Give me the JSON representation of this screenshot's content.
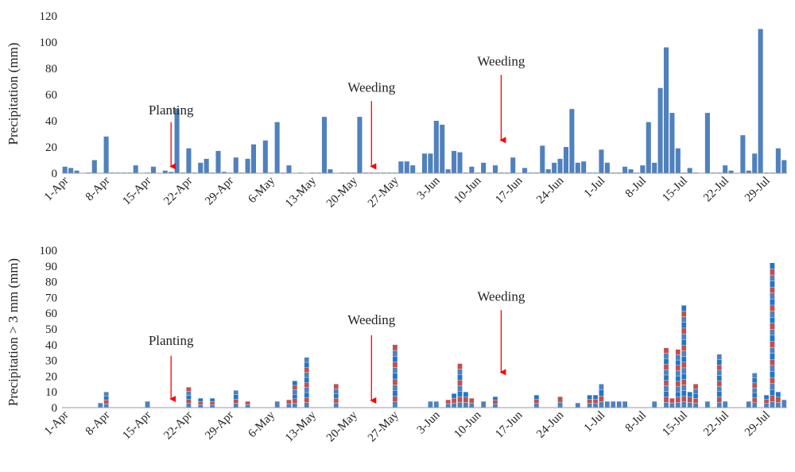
{
  "colors": {
    "blue": "#4F81BD",
    "red": "#C0504D",
    "darkblue": "#1F77C8",
    "axis": "#9a9a9a",
    "arrow": "#FF0000"
  },
  "chart_data": [
    {
      "type": "bar",
      "ylabel": "Precipitation (mm)",
      "ylim": [
        0,
        120
      ],
      "yticks": [
        0,
        20,
        40,
        60,
        80,
        100,
        120
      ],
      "x_range_days": [
        1,
        123
      ],
      "xtick_labels": [
        "1-Apr",
        "8-Apr",
        "15-Apr",
        "22-Apr",
        "29-Apr",
        "6-May",
        "13-May",
        "20-May",
        "27-May",
        "3-Jun",
        "10-Jun",
        "17-Jun",
        "24-Jun",
        "1-Jul",
        "8-Jul",
        "15-Jul",
        "22-Jul",
        "29-Jul"
      ],
      "xtick_days": [
        1,
        8,
        15,
        22,
        29,
        36,
        43,
        50,
        57,
        64,
        71,
        78,
        85,
        92,
        99,
        106,
        113,
        120
      ],
      "days": [
        1,
        2,
        3,
        5,
        6,
        8,
        9,
        10,
        11,
        12,
        13,
        15,
        16,
        18,
        19,
        20,
        21,
        22,
        23,
        24,
        25,
        26,
        27,
        28,
        29,
        30,
        31,
        32,
        33,
        35,
        36,
        37,
        38,
        39,
        41,
        43,
        44,
        45,
        46,
        48,
        49,
        50,
        51,
        52,
        53,
        54,
        55,
        56,
        57,
        58,
        59,
        60,
        62,
        63,
        64,
        65,
        66,
        67,
        68,
        69,
        70,
        71,
        72,
        73,
        74,
        75,
        76,
        77,
        79,
        80,
        81,
        82,
        83,
        84,
        85,
        86,
        87,
        88,
        89,
        90,
        91,
        92,
        93,
        94,
        95,
        96,
        97,
        98,
        99,
        100,
        101,
        102,
        103,
        104,
        105,
        106,
        107,
        108,
        110,
        111,
        112,
        113,
        114,
        116,
        117,
        118,
        119,
        120,
        121,
        122,
        123
      ],
      "values": [
        5,
        4,
        2,
        0.5,
        10,
        28,
        0.5,
        0.5,
        0.5,
        0.5,
        6,
        0.5,
        5,
        2,
        1,
        49,
        0.5,
        19,
        0.5,
        8,
        11,
        0.5,
        17,
        1,
        0.5,
        12,
        0.5,
        11,
        22,
        25,
        0.5,
        39,
        0.5,
        6,
        0.5,
        0.5,
        0.5,
        43,
        3,
        0.5,
        0.5,
        0.5,
        43,
        0.5,
        0.5,
        0.5,
        0.5,
        0.5,
        0.5,
        9,
        9,
        6,
        15,
        15,
        40,
        37,
        3,
        17,
        16,
        0.5,
        5,
        0.5,
        8,
        0.5,
        6,
        0.5,
        0.5,
        12,
        4,
        0.5,
        0.5,
        21,
        3,
        8,
        11,
        20,
        49,
        8,
        9,
        0.5,
        0.5,
        18,
        8,
        0.5,
        0.5,
        5,
        3,
        0.5,
        6,
        39,
        8,
        65,
        96,
        46,
        19,
        0.5,
        4,
        0.5,
        46,
        0.5,
        0.5,
        6,
        2,
        29,
        2,
        15,
        110,
        0.5,
        0.5,
        19,
        10
      ],
      "annotations": [
        {
          "text": "Planting",
          "x_day": 19,
          "arrow_top": 39,
          "arrow_bottom": 1,
          "label_y": 45
        },
        {
          "text": "Weeding",
          "x_day": 53,
          "arrow_top": 55,
          "arrow_bottom": 1,
          "label_y": 62
        },
        {
          "text": "Weeding",
          "x_day": 75,
          "arrow_top": 75,
          "arrow_bottom": 21,
          "label_y": 82
        }
      ]
    },
    {
      "type": "bar",
      "stacked": true,
      "ylabel": "Precipitation > 3 mm (mm)",
      "ylim": [
        0,
        100
      ],
      "yticks": [
        0,
        10,
        20,
        30,
        40,
        50,
        60,
        70,
        80,
        90,
        100
      ],
      "x_range_days": [
        1,
        123
      ],
      "xtick_labels": [
        "1-Apr",
        "8-Apr",
        "15-Apr",
        "22-Apr",
        "29-Apr",
        "6-May",
        "13-May",
        "20-May",
        "27-May",
        "3-Jun",
        "10-Jun",
        "17-Jun",
        "24-Jun",
        "1-Jul",
        "8-Jul",
        "15-Jul",
        "22-Jul",
        "29-Jul"
      ],
      "xtick_days": [
        1,
        8,
        15,
        22,
        29,
        36,
        43,
        50,
        57,
        64,
        71,
        78,
        85,
        92,
        99,
        106,
        113,
        120
      ],
      "days": [
        7,
        8,
        15,
        22,
        24,
        26,
        30,
        32,
        37,
        39,
        40,
        42,
        47,
        57,
        63,
        64,
        66,
        67,
        68,
        69,
        70,
        72,
        74,
        81,
        85,
        88,
        90,
        91,
        92,
        93,
        94,
        95,
        96,
        101,
        103,
        104,
        105,
        106,
        107,
        108,
        110,
        112,
        113,
        117,
        118,
        120,
        121,
        122,
        123
      ],
      "values": [
        3,
        10,
        4,
        13,
        6,
        6,
        11,
        4,
        4,
        5,
        17,
        32,
        15,
        40,
        4,
        4,
        5,
        9,
        28,
        10,
        6,
        4,
        7,
        8,
        7,
        3,
        8,
        8,
        15,
        4,
        4,
        4,
        4,
        4,
        38,
        6,
        37,
        65,
        10,
        15,
        4,
        34,
        4,
        4,
        22,
        8,
        92,
        10,
        5
      ],
      "segments": [
        1,
        4,
        1,
        5,
        3,
        3,
        4,
        2,
        1,
        2,
        6,
        10,
        5,
        11,
        1,
        1,
        2,
        3,
        8,
        3,
        2,
        1,
        3,
        3,
        2,
        1,
        3,
        3,
        4,
        1,
        1,
        1,
        1,
        1,
        11,
        2,
        11,
        18,
        3,
        5,
        1,
        10,
        1,
        1,
        7,
        3,
        24,
        3,
        1
      ],
      "annotations": [
        {
          "text": "Planting",
          "x_day": 19,
          "arrow_top": 33,
          "arrow_bottom": 2,
          "label_y": 40
        },
        {
          "text": "Weeding",
          "x_day": 53,
          "arrow_top": 46,
          "arrow_bottom": 1,
          "label_y": 53
        },
        {
          "text": "Weeding",
          "x_day": 75,
          "arrow_top": 62,
          "arrow_bottom": 19,
          "label_y": 68
        }
      ]
    }
  ]
}
